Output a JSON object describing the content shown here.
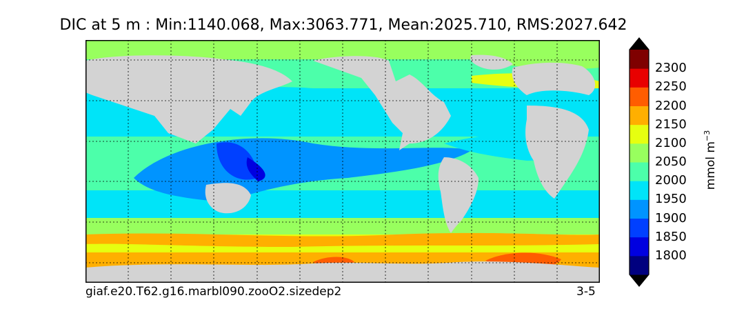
{
  "title": "DIC at 5 m : Min:1140.068, Max:3063.771, Mean:2025.710, RMS:2027.642",
  "footer": {
    "case_name": "giaf.e20.T62.g16.marbl090.zooO2.sizedep2",
    "years": "3-5"
  },
  "colorbar": {
    "label_main": "mmol m",
    "label_exp": "−3",
    "ticks": [
      "1800",
      "1850",
      "1900",
      "1950",
      "2000",
      "2050",
      "2100",
      "2150",
      "2200",
      "2250",
      "2300"
    ],
    "colors": [
      "#00007f",
      "#0000e0",
      "#0040ff",
      "#0094ff",
      "#00e4f8",
      "#4cffaa",
      "#98ff5e",
      "#e6ff10",
      "#ffaf00",
      "#ff5d00",
      "#e80000",
      "#7f0000"
    ],
    "extend": "both"
  },
  "map": {
    "projection": "cylindrical",
    "land_color": "#d3d3d3",
    "grid": "dotted",
    "variable": "DIC",
    "depth": "5 m"
  }
}
